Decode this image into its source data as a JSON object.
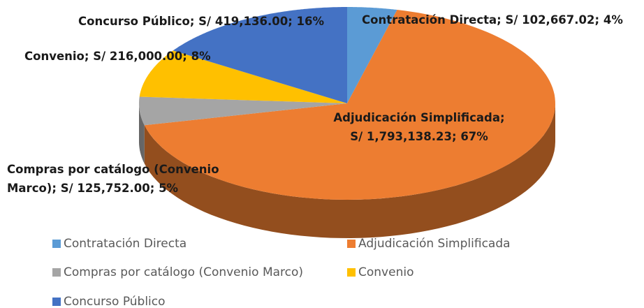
{
  "chart_data": {
    "type": "pie3d",
    "categories": [
      "Contratación Directa",
      "Adjudicación Simplificada",
      "Compras por catálogo (Convenio Marco)",
      "Convenio",
      "Concurso Público"
    ],
    "values": [
      102667.02,
      1793138.23,
      125752.0,
      216000.0,
      419136.0
    ],
    "value_labels": [
      "Contratación Directa; S/ 102,667.02; 4%",
      "Adjudicación Simplificada;\nS/ 1,793,138.23; 67%",
      "Compras por catálogo (Convenio\nMarco); S/ 125,752.00; 5%",
      "Convenio; S/ 216,000.00; 8%",
      "Concurso Público; S/ 419,136.00; 16%"
    ],
    "colors": [
      "#5b9bd5",
      "#ed7d31",
      "#a5a5a5",
      "#ffc000",
      "#4472c4"
    ],
    "legend": "bottom"
  }
}
